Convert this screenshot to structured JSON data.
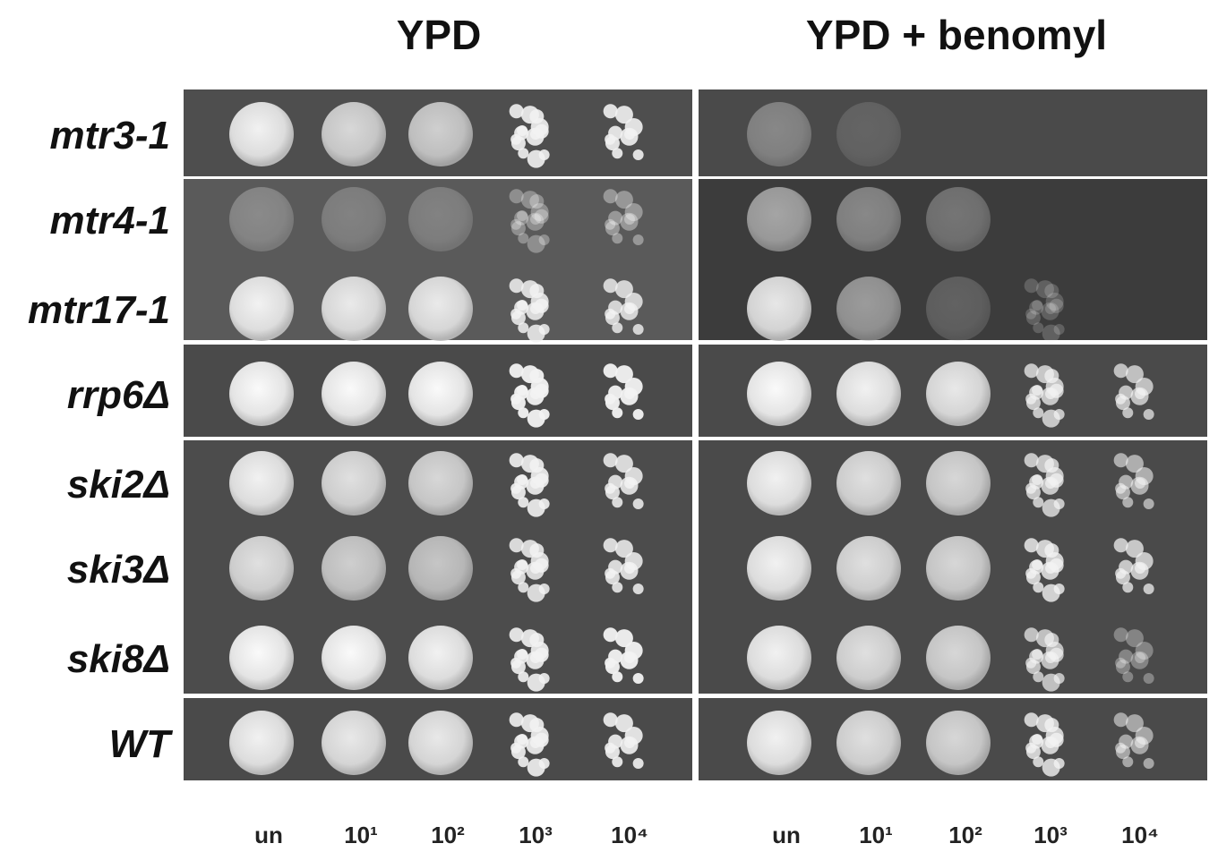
{
  "titles": [
    "YPD",
    "YPD + benomyl"
  ],
  "strains": [
    "mtr3-1",
    "mtr4-1",
    "mtr17-1",
    "rrp6Δ",
    "ski2Δ",
    "ski3Δ",
    "ski8Δ",
    "WT"
  ],
  "dilutions": [
    "un",
    "10¹",
    "10²",
    "10³",
    "10⁴"
  ]
}
